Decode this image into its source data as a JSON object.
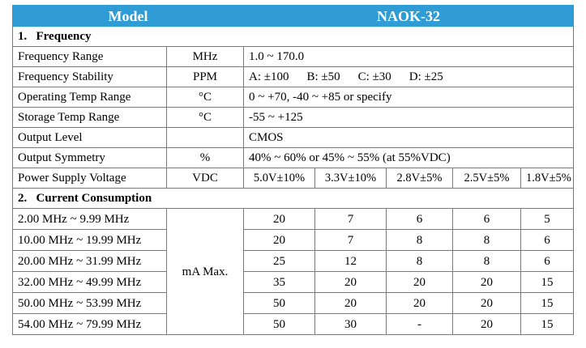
{
  "header": {
    "model_label": "Model",
    "model_value": "NAOK-32"
  },
  "section1": {
    "title": "1.   Frequency",
    "rows": [
      {
        "param": "Frequency Range",
        "unit": "MHz",
        "value": "1.0 ~ 170.0"
      },
      {
        "param": "Frequency Stability",
        "unit": "PPM",
        "value": "",
        "grades": [
          "A: ±100",
          "B: ±50",
          "C: ±30",
          "D: ±25"
        ]
      },
      {
        "param": "Operating Temp Range",
        "unit": "°C",
        "value": "0 ~ +70, -40 ~ +85 or specify"
      },
      {
        "param": "Storage Temp Range",
        "unit": "°C",
        "value": "-55 ~ +125"
      },
      {
        "param": "Output Level",
        "unit": "",
        "value": "CMOS"
      },
      {
        "param": "Output Symmetry",
        "unit": "%",
        "value": "40% ~ 60% or 45% ~ 55% (at 55%VDC)"
      }
    ],
    "supply": {
      "param": "Power Supply Voltage",
      "unit": "VDC",
      "voltages": [
        "5.0V±10%",
        "3.3V±10%",
        "2.8V±5%",
        "2.5V±5%",
        "1.8V±5%"
      ]
    }
  },
  "section2": {
    "title": "2.   Current Consumption",
    "unit": "mA Max.",
    "rows": [
      {
        "range": "2.00 MHz ~ 9.99 MHz",
        "values": [
          "20",
          "7",
          "6",
          "6",
          "5"
        ]
      },
      {
        "range": "10.00 MHz ~ 19.99 MHz",
        "values": [
          "20",
          "7",
          "8",
          "8",
          "6"
        ]
      },
      {
        "range": "20.00 MHz ~ 31.99 MHz",
        "values": [
          "25",
          "12",
          "8",
          "8",
          "6"
        ]
      },
      {
        "range": "32.00 MHz ~ 49.99 MHz",
        "values": [
          "35",
          "20",
          "20",
          "20",
          "15"
        ]
      },
      {
        "range": "50.00 MHz ~ 53.99 MHz",
        "values": [
          "50",
          "20",
          "20",
          "20",
          "15"
        ]
      },
      {
        "range": "54.00 MHz ~ 79.99 MHz",
        "values": [
          "50",
          "30",
          "-",
          "20",
          "15"
        ]
      }
    ]
  }
}
